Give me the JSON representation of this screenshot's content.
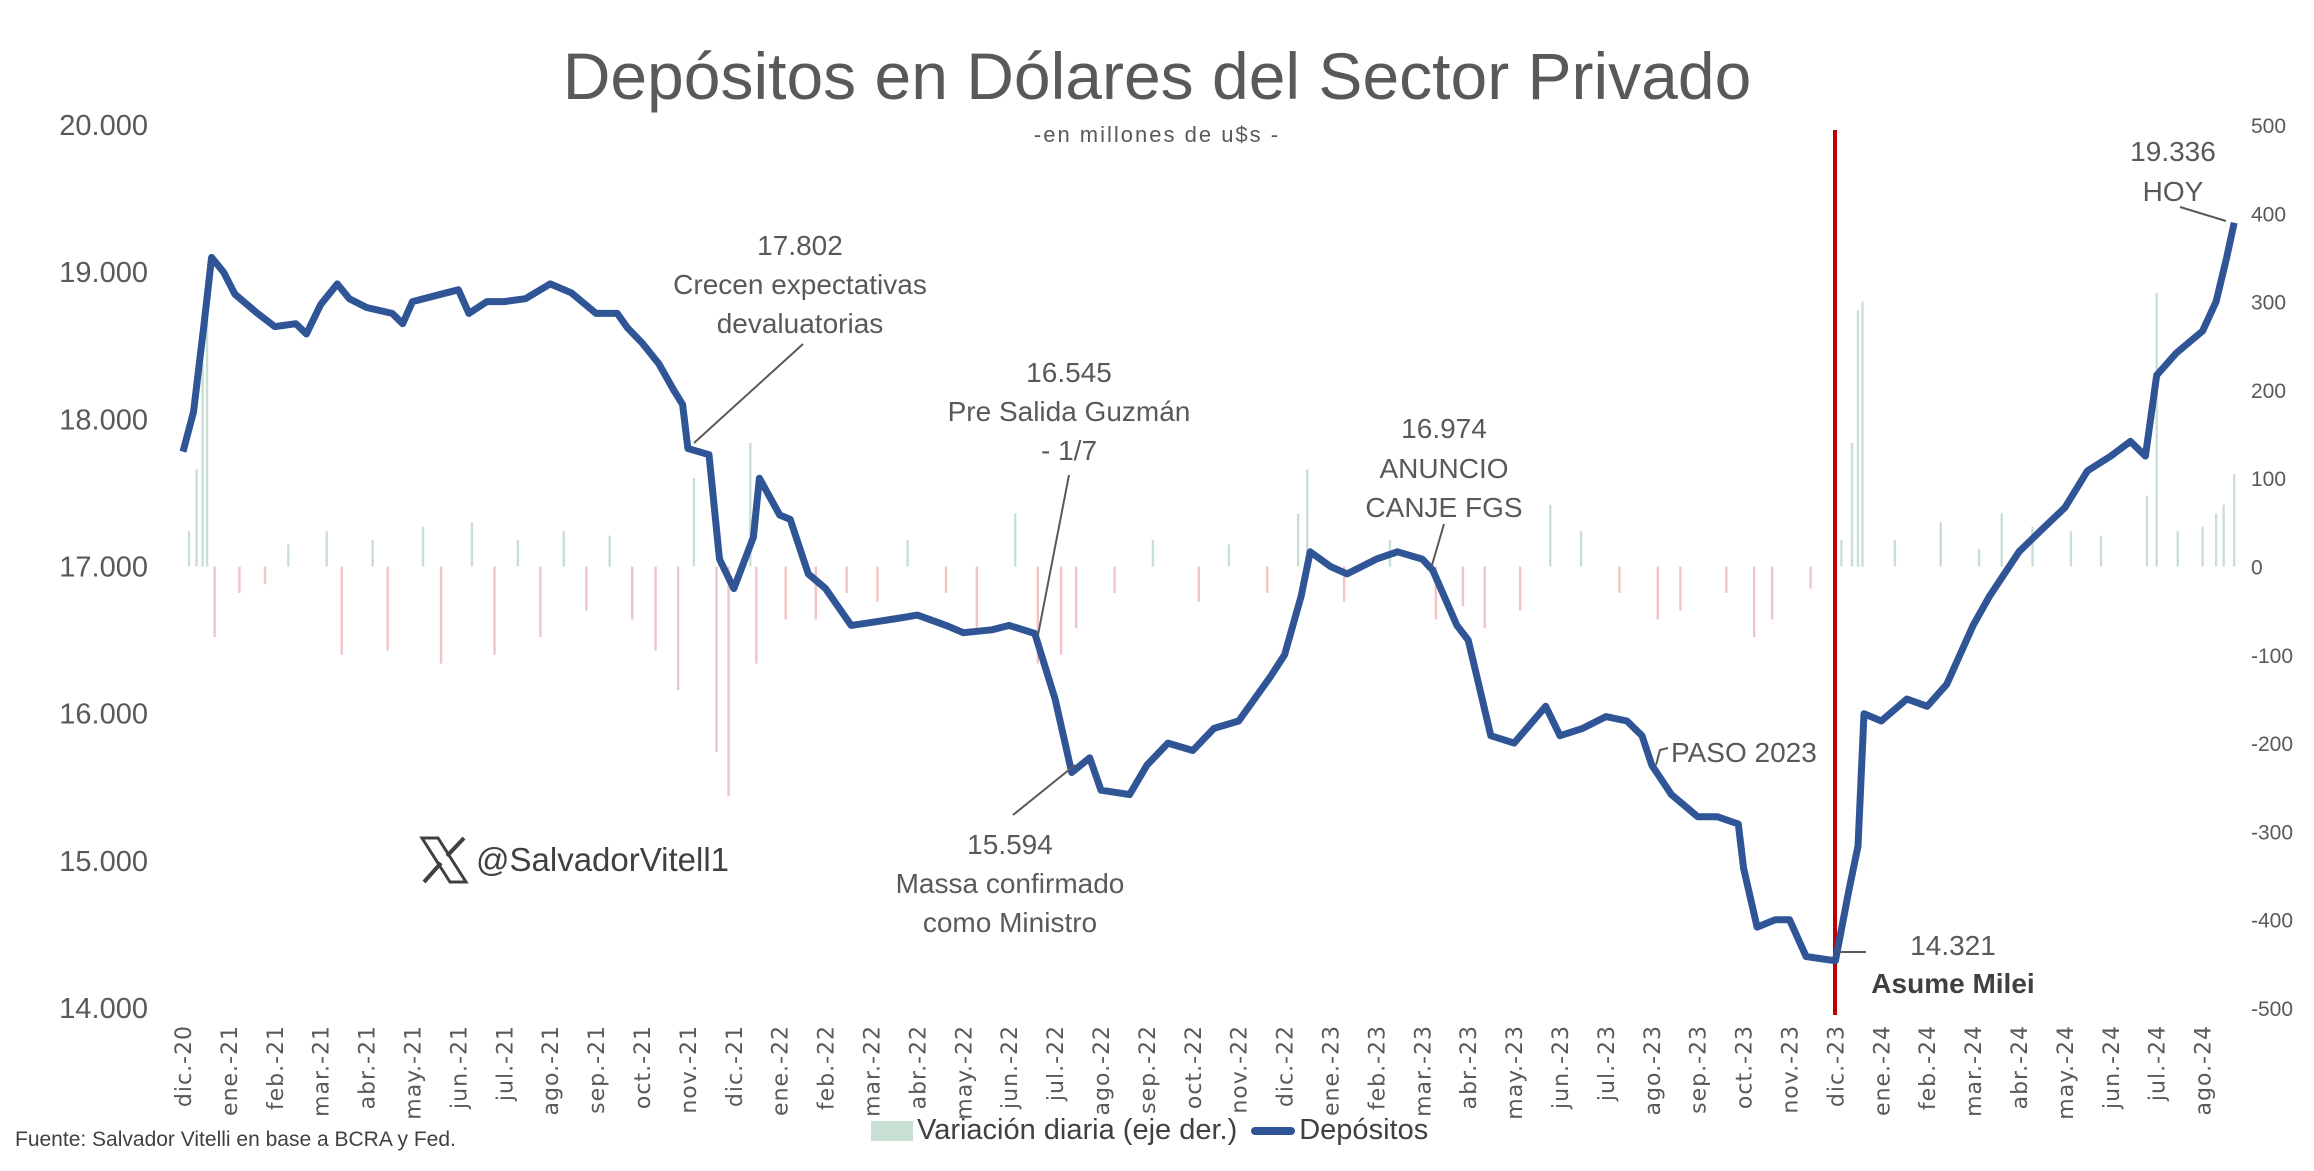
{
  "chart_data": {
    "type": "line",
    "title": "Depósitos en Dólares del Sector Privado",
    "subtitle": "-en millones de u$s -",
    "source": "Fuente: Salvador Vitelli en base a BCRA y Fed.",
    "watermark": "@SalvadorVitell1",
    "xlabel": "",
    "ylabel": "",
    "ylim": [
      14000,
      20000
    ],
    "y2lim": [
      -500,
      500
    ],
    "grid": false,
    "legend_position": "bottom",
    "y_ticks": [
      "20.000",
      "19.000",
      "18.000",
      "17.000",
      "16.000",
      "15.000",
      "14.000"
    ],
    "y2_ticks": [
      "500",
      "400",
      "300",
      "200",
      "100",
      "0",
      "-100",
      "-200",
      "-300",
      "-400",
      "-500"
    ],
    "x_ticks": [
      "dic.-20",
      "ene.-21",
      "feb.-21",
      "mar.-21",
      "abr.-21",
      "may.-21",
      "jun.-21",
      "jul.-21",
      "ago.-21",
      "sep.-21",
      "oct.-21",
      "nov.-21",
      "dic.-21",
      "ene.-22",
      "feb.-22",
      "mar.-22",
      "abr.-22",
      "may.-22",
      "jun.-22",
      "jul.-22",
      "ago.-22",
      "sep.-22",
      "oct.-22",
      "nov.-22",
      "dic.-22",
      "ene.-23",
      "feb.-23",
      "mar.-23",
      "abr.-23",
      "may.-23",
      "jun.-23",
      "jul.-23",
      "ago.-23",
      "sep.-23",
      "oct.-23",
      "nov.-23",
      "dic.-23",
      "ene.-24",
      "feb.-24",
      "mar.-24",
      "abr.-24",
      "may.-24",
      "jun.-24",
      "jul.-24",
      "ago.-24"
    ],
    "colors": {
      "line": "#2F5597",
      "bar_positive": "#c9dfd4",
      "bar_negative": "#f2c4c4",
      "event_line": "#C00000",
      "text": "#595959"
    },
    "series": [
      {
        "name": "Depósitos",
        "axis": "left",
        "points": [
          [
            "2020-12-01",
            17780
          ],
          [
            "2020-12-08",
            18050
          ],
          [
            "2020-12-15",
            18650
          ],
          [
            "2020-12-20",
            19100
          ],
          [
            "2020-12-28",
            19000
          ],
          [
            "2021-01-05",
            18850
          ],
          [
            "2021-01-20",
            18720
          ],
          [
            "2021-02-01",
            18630
          ],
          [
            "2021-02-15",
            18650
          ],
          [
            "2021-02-22",
            18580
          ],
          [
            "2021-03-01",
            18780
          ],
          [
            "2021-03-12",
            18920
          ],
          [
            "2021-03-20",
            18820
          ],
          [
            "2021-04-01",
            18760
          ],
          [
            "2021-04-18",
            18720
          ],
          [
            "2021-04-25",
            18650
          ],
          [
            "2021-05-01",
            18800
          ],
          [
            "2021-05-20",
            18850
          ],
          [
            "2021-06-01",
            18880
          ],
          [
            "2021-06-08",
            18720
          ],
          [
            "2021-06-20",
            18800
          ],
          [
            "2021-07-01",
            18800
          ],
          [
            "2021-07-15",
            18820
          ],
          [
            "2021-08-01",
            18920
          ],
          [
            "2021-08-15",
            18860
          ],
          [
            "2021-09-01",
            18720
          ],
          [
            "2021-09-15",
            18720
          ],
          [
            "2021-09-22",
            18620
          ],
          [
            "2021-10-01",
            18520
          ],
          [
            "2021-10-12",
            18380
          ],
          [
            "2021-10-22",
            18200
          ],
          [
            "2021-10-28",
            18100
          ],
          [
            "2021-11-01",
            17802
          ],
          [
            "2021-11-15",
            17760
          ],
          [
            "2021-11-22",
            17050
          ],
          [
            "2021-12-01",
            16850
          ],
          [
            "2021-12-14",
            17200
          ],
          [
            "2021-12-18",
            17600
          ],
          [
            "2022-01-01",
            17350
          ],
          [
            "2022-01-08",
            17320
          ],
          [
            "2022-01-20",
            16950
          ],
          [
            "2022-02-01",
            16850
          ],
          [
            "2022-02-18",
            16600
          ],
          [
            "2022-03-01",
            16620
          ],
          [
            "2022-03-20",
            16650
          ],
          [
            "2022-04-01",
            16670
          ],
          [
            "2022-04-20",
            16600
          ],
          [
            "2022-05-01",
            16550
          ],
          [
            "2022-05-20",
            16570
          ],
          [
            "2022-06-01",
            16600
          ],
          [
            "2022-06-18",
            16545
          ],
          [
            "2022-07-01",
            16100
          ],
          [
            "2022-07-12",
            15600
          ],
          [
            "2022-07-24",
            15700
          ],
          [
            "2022-08-01",
            15480
          ],
          [
            "2022-08-20",
            15450
          ],
          [
            "2022-09-01",
            15650
          ],
          [
            "2022-09-15",
            15800
          ],
          [
            "2022-10-01",
            15750
          ],
          [
            "2022-10-15",
            15900
          ],
          [
            "2022-11-01",
            15950
          ],
          [
            "2022-11-22",
            16250
          ],
          [
            "2022-12-01",
            16400
          ],
          [
            "2022-12-12",
            16800
          ],
          [
            "2022-12-18",
            17100
          ],
          [
            "2023-01-01",
            17000
          ],
          [
            "2023-01-12",
            16950
          ],
          [
            "2023-02-01",
            17050
          ],
          [
            "2023-02-15",
            17100
          ],
          [
            "2023-03-01",
            17050
          ],
          [
            "2023-03-08",
            16974
          ],
          [
            "2023-03-24",
            16600
          ],
          [
            "2023-04-01",
            16500
          ],
          [
            "2023-04-08",
            16200
          ],
          [
            "2023-04-16",
            15850
          ],
          [
            "2023-05-01",
            15800
          ],
          [
            "2023-05-22",
            16050
          ],
          [
            "2023-06-01",
            15850
          ],
          [
            "2023-06-16",
            15900
          ],
          [
            "2023-07-01",
            15980
          ],
          [
            "2023-07-15",
            15950
          ],
          [
            "2023-07-25",
            15850
          ],
          [
            "2023-08-01",
            15650
          ],
          [
            "2023-08-14",
            15450
          ],
          [
            "2023-09-01",
            15300
          ],
          [
            "2023-09-14",
            15300
          ],
          [
            "2023-09-28",
            15250
          ],
          [
            "2023-10-01",
            14950
          ],
          [
            "2023-10-10",
            14550
          ],
          [
            "2023-10-22",
            14600
          ],
          [
            "2023-11-01",
            14600
          ],
          [
            "2023-11-12",
            14350
          ],
          [
            "2023-12-01",
            14321
          ],
          [
            "2023-12-10",
            14800
          ],
          [
            "2023-12-16",
            15100
          ],
          [
            "2023-12-20",
            16000
          ],
          [
            "2024-01-01",
            15950
          ],
          [
            "2024-01-18",
            16100
          ],
          [
            "2024-02-01",
            16050
          ],
          [
            "2024-02-14",
            16200
          ],
          [
            "2024-03-01",
            16600
          ],
          [
            "2024-03-12",
            16800
          ],
          [
            "2024-04-01",
            17100
          ],
          [
            "2024-04-16",
            17250
          ],
          [
            "2024-05-01",
            17400
          ],
          [
            "2024-05-16",
            17650
          ],
          [
            "2024-06-01",
            17750
          ],
          [
            "2024-06-14",
            17850
          ],
          [
            "2024-06-24",
            17750
          ],
          [
            "2024-07-01",
            18300
          ],
          [
            "2024-07-14",
            18450
          ],
          [
            "2024-08-01",
            18600
          ],
          [
            "2024-08-10",
            18800
          ],
          [
            "2024-08-17",
            19100
          ],
          [
            "2024-08-22",
            19336
          ]
        ]
      },
      {
        "name": "Variación diaria (eje der.)",
        "axis": "right",
        "type": "bar",
        "points": [
          [
            "2020-12-05",
            40
          ],
          [
            "2020-12-10",
            110
          ],
          [
            "2020-12-14",
            230
          ],
          [
            "2020-12-17",
            280
          ],
          [
            "2020-12-22",
            -80
          ],
          [
            "2021-01-08",
            -30
          ],
          [
            "2021-01-25",
            -20
          ],
          [
            "2021-02-10",
            25
          ],
          [
            "2021-03-05",
            40
          ],
          [
            "2021-03-15",
            -100
          ],
          [
            "2021-04-05",
            30
          ],
          [
            "2021-04-15",
            -95
          ],
          [
            "2021-05-08",
            45
          ],
          [
            "2021-05-20",
            -110
          ],
          [
            "2021-06-10",
            50
          ],
          [
            "2021-06-25",
            -100
          ],
          [
            "2021-07-10",
            30
          ],
          [
            "2021-07-25",
            -80
          ],
          [
            "2021-08-10",
            40
          ],
          [
            "2021-08-25",
            -50
          ],
          [
            "2021-09-10",
            35
          ],
          [
            "2021-09-25",
            -60
          ],
          [
            "2021-10-10",
            -95
          ],
          [
            "2021-10-25",
            -140
          ],
          [
            "2021-11-05",
            100
          ],
          [
            "2021-11-20",
            -210
          ],
          [
            "2021-11-28",
            -260
          ],
          [
            "2021-12-12",
            140
          ],
          [
            "2021-12-16",
            -110
          ],
          [
            "2022-01-05",
            -60
          ],
          [
            "2022-01-25",
            -60
          ],
          [
            "2022-02-15",
            -30
          ],
          [
            "2022-03-05",
            -40
          ],
          [
            "2022-03-25",
            30
          ],
          [
            "2022-04-20",
            -30
          ],
          [
            "2022-05-10",
            -70
          ],
          [
            "2022-06-05",
            60
          ],
          [
            "2022-06-20",
            -110
          ],
          [
            "2022-07-05",
            -100
          ],
          [
            "2022-07-15",
            -70
          ],
          [
            "2022-08-10",
            -30
          ],
          [
            "2022-09-05",
            30
          ],
          [
            "2022-10-05",
            -40
          ],
          [
            "2022-10-25",
            25
          ],
          [
            "2022-11-20",
            -30
          ],
          [
            "2022-12-10",
            60
          ],
          [
            "2022-12-16",
            110
          ],
          [
            "2023-01-10",
            -40
          ],
          [
            "2023-02-10",
            30
          ],
          [
            "2023-03-10",
            -60
          ],
          [
            "2023-03-28",
            -45
          ],
          [
            "2023-04-12",
            -70
          ],
          [
            "2023-05-05",
            -50
          ],
          [
            "2023-05-25",
            70
          ],
          [
            "2023-06-15",
            40
          ],
          [
            "2023-07-10",
            -30
          ],
          [
            "2023-08-05",
            -60
          ],
          [
            "2023-08-20",
            -50
          ],
          [
            "2023-09-20",
            -30
          ],
          [
            "2023-10-08",
            -80
          ],
          [
            "2023-10-20",
            -60
          ],
          [
            "2023-11-15",
            -25
          ],
          [
            "2023-12-05",
            30
          ],
          [
            "2023-12-12",
            140
          ],
          [
            "2023-12-16",
            290
          ],
          [
            "2023-12-19",
            300
          ],
          [
            "2024-01-10",
            30
          ],
          [
            "2024-02-10",
            50
          ],
          [
            "2024-03-05",
            20
          ],
          [
            "2024-03-20",
            60
          ],
          [
            "2024-04-10",
            45
          ],
          [
            "2024-05-05",
            40
          ],
          [
            "2024-05-25",
            35
          ],
          [
            "2024-06-25",
            80
          ],
          [
            "2024-07-01",
            310
          ],
          [
            "2024-07-15",
            40
          ],
          [
            "2024-08-01",
            45
          ],
          [
            "2024-08-10",
            60
          ],
          [
            "2024-08-15",
            70
          ],
          [
            "2024-08-22",
            105
          ]
        ]
      }
    ],
    "annotations": {
      "crecen": {
        "value": "17.802",
        "line1": "Crecen expectativas",
        "line2": "devaluatorias"
      },
      "guzman": {
        "value": "16.545",
        "line1": "Pre Salida Guzmán",
        "line2": "- 1/7"
      },
      "massa": {
        "value": "15.594",
        "line1": "Massa confirmado",
        "line2": "como Ministro"
      },
      "canje": {
        "value": "16.974",
        "line1": "ANUNCIO",
        "line2": "CANJE FGS"
      },
      "paso": {
        "label": "PASO 2023"
      },
      "milei": {
        "value": "14.321",
        "label": "Asume Milei",
        "date": "2023-12-10"
      },
      "hoy": {
        "value": "19.336",
        "label": "HOY"
      }
    },
    "legend": {
      "bars": "Variación diaria (eje der.)",
      "line": "Depósitos"
    }
  }
}
